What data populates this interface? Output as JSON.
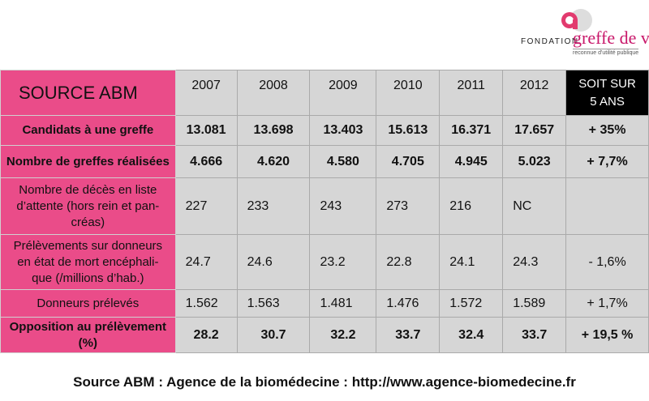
{
  "logo": {
    "word": "FONDATION",
    "brand": "greffe de vie",
    "tagline": "reconnue d'utilité publique",
    "colors": {
      "pink": "#c8176a",
      "grey": "#d9d9d9"
    }
  },
  "table": {
    "title": "SOURCE ABM",
    "years": [
      "2007",
      "2008",
      "2009",
      "2010",
      "2011",
      "2012"
    ],
    "summary_header": [
      "SOIT SUR",
      "5 ANS"
    ],
    "rows": [
      {
        "label": [
          "Candidats à une greffe"
        ],
        "values": [
          "13.081",
          "13.698",
          "13.403",
          "15.613",
          "16.371",
          "17.657"
        ],
        "summary": "+ 35%",
        "bold": true
      },
      {
        "label": [
          "Nombre de greffes réalisées"
        ],
        "values": [
          "4.666",
          "4.620",
          "4.580",
          "4.705",
          "4.945",
          "5.023"
        ],
        "summary": "+ 7,7%",
        "bold": true
      },
      {
        "label": [
          "Nombre de décès en liste",
          "d’attente (hors rein et pan-",
          "créas)"
        ],
        "values": [
          "227",
          "233",
          "243",
          "273",
          "216",
          "NC"
        ],
        "summary": "",
        "bold": false
      },
      {
        "label": [
          "Prélèvements sur donneurs",
          "en état de mort encéphali-",
          "que (/millions d’hab.)"
        ],
        "values": [
          "24.7",
          "24.6",
          "23.2",
          "22.8",
          "24.1",
          "24.3"
        ],
        "summary": "- 1,6%",
        "bold": false
      },
      {
        "label": [
          "Donneurs prélevés"
        ],
        "values": [
          "1.562",
          "1.563",
          "1.481",
          "1.476",
          "1.572",
          "1.589"
        ],
        "summary": "+ 1,7%",
        "bold": false
      },
      {
        "label": [
          "Opposition au prélèvement",
          "(%)"
        ],
        "values": [
          "28.2",
          "30.7",
          "32.2",
          "33.7",
          "32.4",
          "33.7"
        ],
        "summary": "+ 19,5 %",
        "bold": true
      }
    ]
  },
  "footer": "Source ABM : Agence de la biomédecine : http://www.agence-biomedecine.fr",
  "colors": {
    "label_bg": "#ea4c89",
    "cell_bg": "#d6d6d6",
    "summary_head_bg": "#000000"
  }
}
